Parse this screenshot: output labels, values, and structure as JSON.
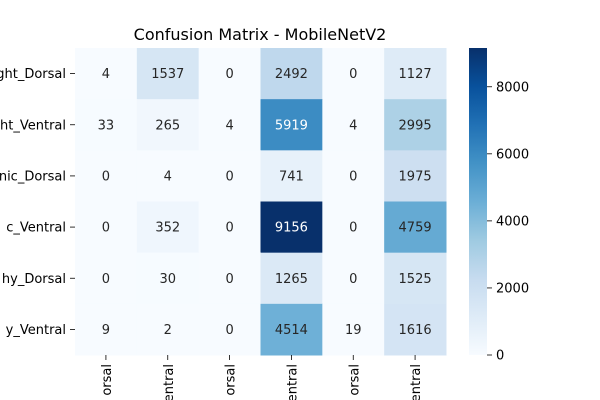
{
  "chart_data": {
    "type": "heatmap",
    "title": "Confusion Matrix - MobileNetV2",
    "row_labels": [
      "ght_Dorsal",
      "ht_Ventral",
      "nic_Dorsal",
      "c_Ventral",
      "hy_Dorsal",
      "y_Ventral"
    ],
    "col_labels": [
      "orsal",
      "entral",
      "orsal",
      "entral",
      "orsal",
      "entral"
    ],
    "values": [
      [
        4,
        1537,
        0,
        2492,
        0,
        1127
      ],
      [
        33,
        265,
        4,
        5919,
        4,
        2995
      ],
      [
        0,
        4,
        0,
        741,
        0,
        1975
      ],
      [
        0,
        352,
        0,
        9156,
        0,
        4759
      ],
      [
        0,
        30,
        0,
        1265,
        0,
        1525
      ],
      [
        9,
        2,
        0,
        4514,
        19,
        1616
      ]
    ],
    "colormap": "Blues",
    "vmin": 0,
    "vmax": 9156,
    "colorbar_ticks": [
      0,
      2000,
      4000,
      6000,
      8000
    ]
  }
}
